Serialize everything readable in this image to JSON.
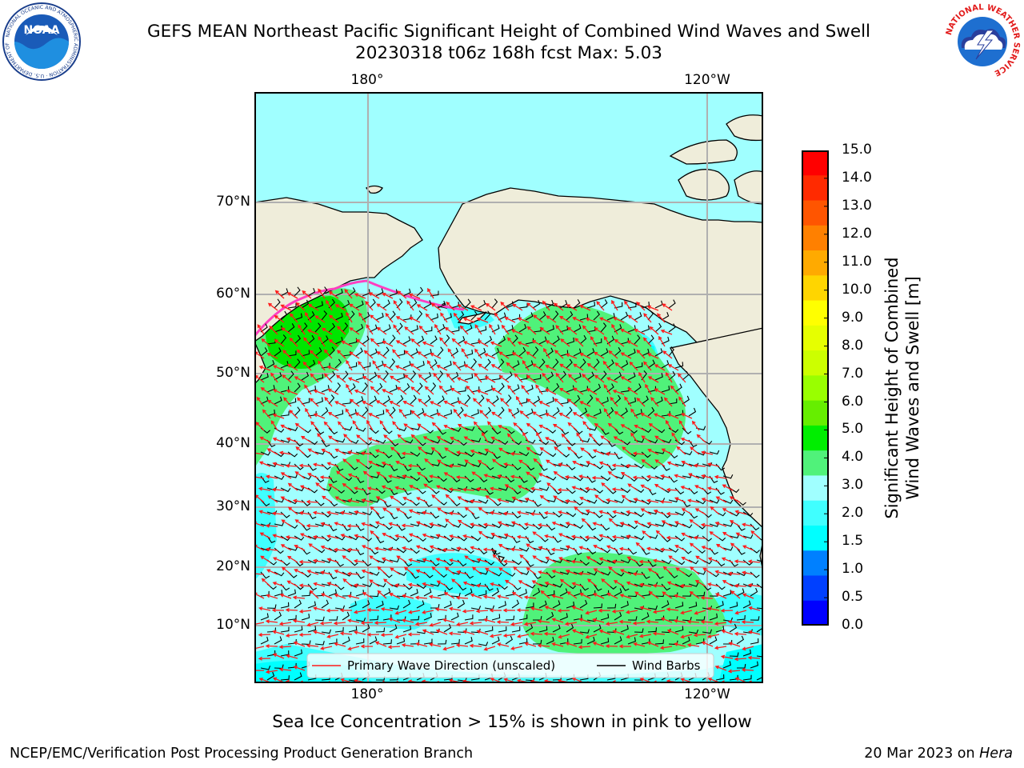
{
  "header": {
    "title_line1": "GEFS MEAN Northeast Pacific Significant Height of Combined Wind Waves and Swell",
    "title_line2": "20230318 t06z 168h fcst   Max: 5.03"
  },
  "logos": {
    "noaa": {
      "text": "NOAA",
      "ring_text": "NATIONAL OCEANIC AND ATMOSPHERIC ADMINISTRATION · U.S. DEPARTMENT OF COMMERCE",
      "icon": "noaa-logo-icon"
    },
    "nws": {
      "ring_text": "NATIONAL WEATHER SERVICE",
      "icon": "nws-logo-icon"
    }
  },
  "map": {
    "lon_labels": [
      "180°",
      "120°W"
    ],
    "lat_labels": [
      "70°N",
      "60°N",
      "50°N",
      "40°N",
      "30°N",
      "20°N",
      "10°N"
    ],
    "colors": {
      "land": "#efedda",
      "ocean_2_3": "#a0ffff",
      "ocean_1_5_2": "#40ffff",
      "ocean_1_1_5": "#00ffff",
      "ocean_3_4": "#50f27a",
      "ocean_4_5": "#00e600",
      "wave_arrow": "#ff1a1a",
      "wind_barb": "#000000",
      "sea_ice": "#ff40c0"
    },
    "legend": {
      "wave_label": "Primary Wave Direction (unscaled)",
      "barb_label": "Wind Barbs"
    }
  },
  "colorbar": {
    "ticks": [
      "15.0",
      "14.0",
      "13.0",
      "12.0",
      "11.0",
      "10.0",
      "9.0",
      "8.0",
      "7.0",
      "6.0",
      "5.0",
      "4.0",
      "3.0",
      "2.0",
      "1.5",
      "1.0",
      "0.5",
      "0.0"
    ],
    "colors_top_to_bottom": [
      "#ff0000",
      "#ff2a00",
      "#ff5500",
      "#ff8000",
      "#ffaa00",
      "#ffd500",
      "#ffff00",
      "#e6ff00",
      "#ccff00",
      "#99ff00",
      "#66ee00",
      "#00ee00",
      "#50f27a",
      "#a0ffff",
      "#40ffff",
      "#00ffff",
      "#0080ff",
      "#0040ff",
      "#0000ff"
    ],
    "axis_label_line1": "Significant Height of Combined",
    "axis_label_line2": "Wind Waves and Swell [m]"
  },
  "caption": "Sea Ice Concentration > 15% is shown in pink to yellow",
  "footer": {
    "left": "NCEP/EMC/Verification Post Processing Product Generation Branch",
    "right_date": "20 Mar 2023 on ",
    "right_host": "Hera"
  }
}
